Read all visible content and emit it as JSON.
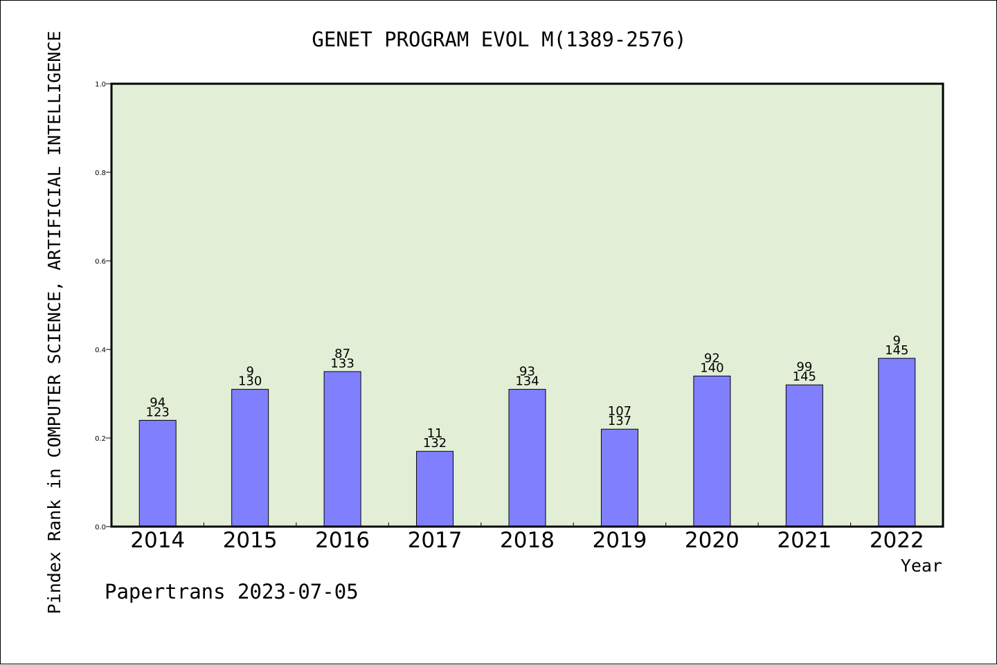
{
  "chart_data": {
    "type": "bar",
    "title": "GENET PROGRAM EVOL M(1389-2576)",
    "xlabel": "Year",
    "ylabel": "Pindex Rank in COMPUTER SCIENCE, ARTIFICIAL INTELLIGENCE",
    "categories": [
      "2014",
      "2015",
      "2016",
      "2017",
      "2018",
      "2019",
      "2020",
      "2021",
      "2022"
    ],
    "values": [
      0.24,
      0.31,
      0.35,
      0.17,
      0.31,
      0.22,
      0.34,
      0.32,
      0.38
    ],
    "label_top": [
      "94",
      "9",
      "87",
      "11",
      "93",
      "107",
      "92",
      "99",
      "9"
    ],
    "label_bottom": [
      "123",
      "130",
      "133",
      "132",
      "134",
      "137",
      "140",
      "145",
      "145"
    ],
    "ylim": [
      0,
      1.0
    ],
    "yticks": [
      "0.0",
      "0.2",
      "0.4",
      "0.6",
      "0.8",
      "1.0"
    ],
    "grid": false,
    "plot_background": "#e2efd6",
    "bar_color": "#8080ff"
  },
  "footer": "Papertrans 2023-07-05"
}
